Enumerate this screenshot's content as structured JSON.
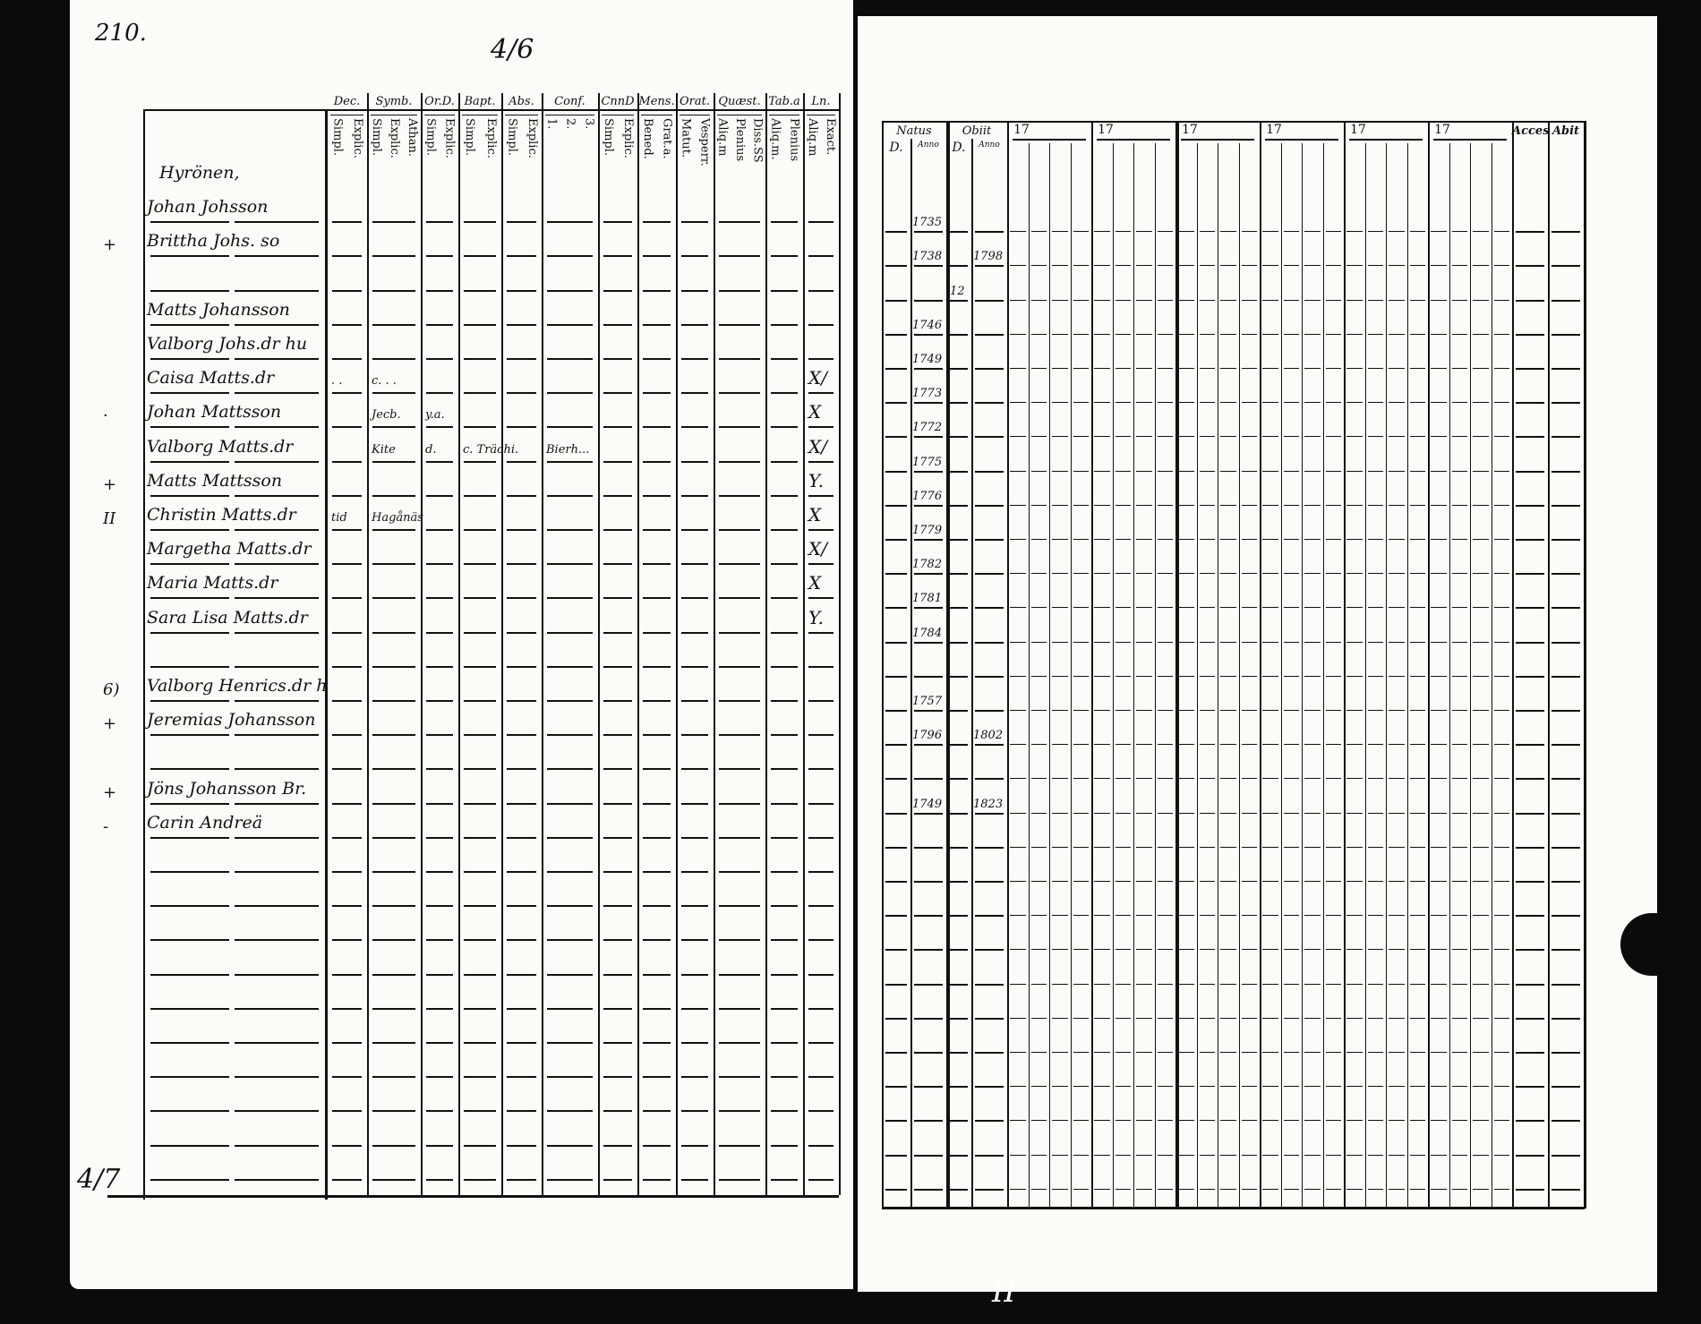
{
  "left_page": {
    "page_number": "210.",
    "folio_note": "4/6",
    "bottom_note": "4/7",
    "column_groups": [
      {
        "top": "Dec.",
        "sub": [
          "Explic.",
          "Simpl."
        ]
      },
      {
        "top": "Symb.",
        "sub": [
          "Athan.",
          "Explic.",
          "Simpl."
        ]
      },
      {
        "top": "Or.D.",
        "sub": [
          "Explic.",
          "Simpl."
        ]
      },
      {
        "top": "Bapt.",
        "sub": [
          "Explic.",
          "Simpl."
        ]
      },
      {
        "top": "Abs.",
        "sub": [
          "Explic.",
          "Simpl."
        ]
      },
      {
        "top": "Conf.",
        "sub": [
          "3.",
          "2.",
          "1."
        ]
      },
      {
        "top": "CnnD",
        "sub": [
          "Explic.",
          "Simpl."
        ]
      },
      {
        "top": "Mens.",
        "sub": [
          "Grat.a.",
          "Bened."
        ]
      },
      {
        "top": "Orat.",
        "sub": [
          "Vesperr.",
          "Matut."
        ]
      },
      {
        "top": "Quæst.",
        "sub": [
          "Diss.SS",
          "Plenius",
          "Aliq.m"
        ]
      },
      {
        "top": "Tab.a",
        "sub": [
          "Plenius",
          "Aliq.m."
        ]
      },
      {
        "top": "Ln.",
        "sub": [
          "Exact.",
          "Aliq.m"
        ]
      }
    ],
    "rows": [
      {
        "name": "Hyrönen,",
        "margin": "",
        "marks": {},
        "ln": ""
      },
      {
        "name": "Johan Johsson",
        "margin": "",
        "marks": {},
        "ln": ""
      },
      {
        "name": "Brittha Johs. so",
        "margin": "+",
        "marks": {},
        "ln": ""
      },
      {
        "name": "",
        "margin": "",
        "marks": {},
        "ln": ""
      },
      {
        "name": "Matts Johansson",
        "margin": "",
        "marks": {},
        "ln": ""
      },
      {
        "name": "Valborg Johs.dr hu",
        "margin": "",
        "marks": {},
        "ln": ""
      },
      {
        "name": "Caisa Matts.dr",
        "margin": "",
        "marks": {
          "0": ". .",
          "1": "c. . ."
        },
        "ln": "X/"
      },
      {
        "name": "Johan Mattsson",
        "margin": "·",
        "marks": {
          "1": "Jecb.",
          "2": "y.a."
        },
        "ln": "X"
      },
      {
        "name": "Valborg Matts.dr",
        "margin": "",
        "marks": {
          "1": "Kite",
          "2": "d.",
          "3": "c. Trächi.",
          "5": "Bierh..."
        },
        "ln": "X/"
      },
      {
        "name": "Matts Mattsson",
        "margin": "+",
        "marks": {},
        "ln": "Y."
      },
      {
        "name": "Christin Matts.dr",
        "margin": "II",
        "marks": {
          "0": "tid",
          "1": "Hagånäs"
        },
        "ln": "X"
      },
      {
        "name": "Margetha Matts.dr",
        "margin": "",
        "marks": {},
        "ln": "X/"
      },
      {
        "name": "Maria Matts.dr",
        "margin": "",
        "marks": {},
        "ln": "X"
      },
      {
        "name": "Sara Lisa Matts.dr",
        "margin": "",
        "marks": {},
        "ln": "Y."
      },
      {
        "name": "",
        "margin": "",
        "marks": {},
        "ln": ""
      },
      {
        "name": "Valborg Henrics.dr h",
        "margin": "6)",
        "marks": {},
        "ln": ""
      },
      {
        "name": "Jeremias Johansson",
        "margin": "+",
        "marks": {},
        "ln": ""
      },
      {
        "name": "",
        "margin": "",
        "marks": {},
        "ln": ""
      },
      {
        "name": "Jöns Johansson Br.",
        "margin": "+",
        "marks": {},
        "ln": ""
      },
      {
        "name": "Carin Andreä",
        "margin": "-",
        "marks": {},
        "ln": ""
      }
    ],
    "blank_rows": 10
  },
  "right_page": {
    "headers": {
      "natus": "Natus",
      "obiit": "Obiit",
      "day": "D.",
      "anno": "Anno",
      "acces": "Acces",
      "abit": "Abit"
    },
    "year_groups": [
      "17",
      "17",
      "17",
      "17",
      "17",
      "17"
    ],
    "rows": [
      {
        "natus": "",
        "obiit_d": "",
        "obiit": ""
      },
      {
        "natus": "1735",
        "obiit_d": "",
        "obiit": ""
      },
      {
        "natus": "1738",
        "obiit_d": "",
        "obiit": "1798"
      },
      {
        "natus": "",
        "obiit_d": "12",
        "obiit": ""
      },
      {
        "natus": "1746",
        "obiit_d": "",
        "obiit": ""
      },
      {
        "natus": "1749",
        "obiit_d": "",
        "obiit": ""
      },
      {
        "natus": "1773",
        "obiit_d": "",
        "obiit": ""
      },
      {
        "natus": "1772",
        "obiit_d": "",
        "obiit": ""
      },
      {
        "natus": "1775",
        "obiit_d": "",
        "obiit": ""
      },
      {
        "natus": "1776",
        "obiit_d": "",
        "obiit": ""
      },
      {
        "natus": "1779",
        "obiit_d": "",
        "obiit": ""
      },
      {
        "natus": "1782",
        "obiit_d": "",
        "obiit": ""
      },
      {
        "natus": "1781",
        "obiit_d": "",
        "obiit": ""
      },
      {
        "natus": "1784",
        "obiit_d": "",
        "obiit": ""
      },
      {
        "natus": "",
        "obiit_d": "",
        "obiit": ""
      },
      {
        "natus": "1757",
        "obiit_d": "",
        "obiit": ""
      },
      {
        "natus": "1796",
        "obiit_d": "",
        "obiit": "1802"
      },
      {
        "natus": "",
        "obiit_d": "",
        "obiit": ""
      },
      {
        "natus": "1749",
        "obiit_d": "",
        "obiit": "1823"
      },
      {
        "natus": "",
        "obiit_d": "",
        "obiit": ""
      }
    ],
    "bottom_mark": "II"
  }
}
